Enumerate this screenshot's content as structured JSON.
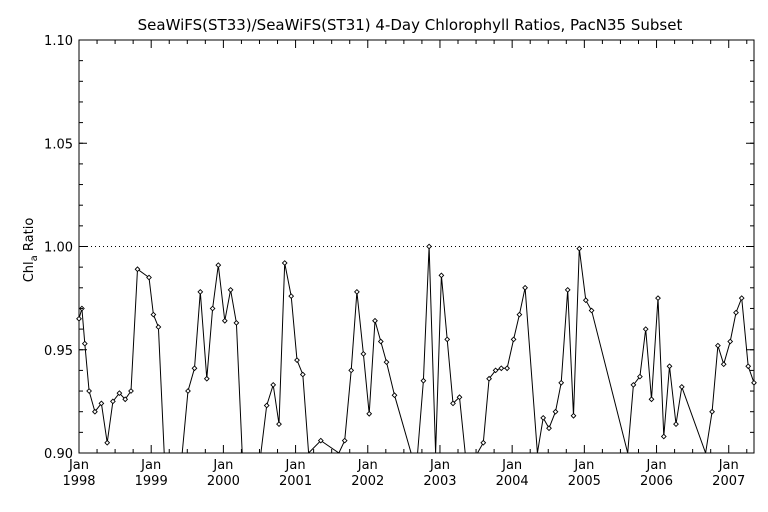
{
  "chart_data": {
    "type": "line",
    "title": "SeaWiFS(ST33)/SeaWiFS(ST31) 4-Day Chlorophyll Ratios, PacN35 Subset",
    "ylabel_main": "Chl",
    "ylabel_sub": "a",
    "ylabel_rest": " Ratio",
    "ylim": [
      0.9,
      1.1
    ],
    "xlim": [
      1998.0,
      2007.35
    ],
    "reference_line": 1.0,
    "grid": false,
    "yticks": [
      {
        "value": 0.9,
        "label": "0.90"
      },
      {
        "value": 0.95,
        "label": "0.95"
      },
      {
        "value": 1.0,
        "label": "1.00"
      },
      {
        "value": 1.05,
        "label": "1.05"
      },
      {
        "value": 1.1,
        "label": "1.10"
      }
    ],
    "xticks": [
      {
        "value": 1998,
        "month": "Jan",
        "year": "1998"
      },
      {
        "value": 1999,
        "month": "Jan",
        "year": "1999"
      },
      {
        "value": 2000,
        "month": "Jan",
        "year": "2000"
      },
      {
        "value": 2001,
        "month": "Jan",
        "year": "2001"
      },
      {
        "value": 2002,
        "month": "Jan",
        "year": "2002"
      },
      {
        "value": 2003,
        "month": "Jan",
        "year": "2003"
      },
      {
        "value": 2004,
        "month": "Jan",
        "year": "2004"
      },
      {
        "value": 2005,
        "month": "Jan",
        "year": "2005"
      },
      {
        "value": 2006,
        "month": "Jan",
        "year": "2006"
      },
      {
        "value": 2007,
        "month": "Jan",
        "year": "2007"
      }
    ],
    "series": [
      {
        "color": "#000000",
        "x": [
          1998.0,
          1998.04,
          1998.08,
          1998.14,
          1998.22,
          1998.31,
          1998.39,
          1998.47,
          1998.56,
          1998.64,
          1998.72,
          1998.81,
          1998.97,
          1999.03,
          1999.1,
          1999.18,
          1999.43,
          1999.51,
          1999.6,
          1999.68,
          1999.77,
          1999.85,
          1999.93,
          2000.02,
          2000.1,
          2000.18,
          2000.26,
          2000.52,
          2000.6,
          2000.69,
          2000.77,
          2000.85,
          2000.94,
          2001.02,
          2001.1,
          2001.18,
          2001.35,
          2001.6,
          2001.68,
          2001.77,
          2001.85,
          2001.94,
          2002.02,
          2002.1,
          2002.18,
          2002.26,
          2002.37,
          2002.6,
          2002.69,
          2002.77,
          2002.85,
          2002.94,
          2003.02,
          2003.1,
          2003.18,
          2003.27,
          2003.35,
          2003.52,
          2003.6,
          2003.68,
          2003.77,
          2003.85,
          2003.93,
          2004.02,
          2004.1,
          2004.18,
          2004.35,
          2004.43,
          2004.51,
          2004.6,
          2004.68,
          2004.77,
          2004.85,
          2004.93,
          2005.02,
          2005.1,
          2005.6,
          2005.68,
          2005.77,
          2005.85,
          2005.93,
          2006.02,
          2006.1,
          2006.18,
          2006.27,
          2006.35,
          2006.68,
          2006.77,
          2006.85,
          2006.93,
          2007.02,
          2007.1,
          2007.18,
          2007.27,
          2007.35
        ],
        "y": [
          0.965,
          0.97,
          0.953,
          0.93,
          0.92,
          0.924,
          0.905,
          0.925,
          0.929,
          0.926,
          0.93,
          0.989,
          0.985,
          0.967,
          0.961,
          0.9,
          0.9,
          0.93,
          0.941,
          0.978,
          0.936,
          0.97,
          0.991,
          0.964,
          0.979,
          0.963,
          0.9,
          0.9,
          0.923,
          0.933,
          0.914,
          0.992,
          0.976,
          0.945,
          0.938,
          0.9,
          0.906,
          0.9,
          0.906,
          0.94,
          0.978,
          0.948,
          0.919,
          0.964,
          0.954,
          0.944,
          0.928,
          0.9,
          0.9,
          0.935,
          1.0,
          0.9,
          0.986,
          0.955,
          0.924,
          0.927,
          0.9,
          0.9,
          0.905,
          0.936,
          0.94,
          0.941,
          0.941,
          0.955,
          0.967,
          0.98,
          0.9,
          0.917,
          0.912,
          0.92,
          0.934,
          0.979,
          0.918,
          0.999,
          0.974,
          0.969,
          0.9,
          0.933,
          0.937,
          0.96,
          0.926,
          0.975,
          0.908,
          0.942,
          0.914,
          0.932,
          0.9,
          0.92,
          0.952,
          0.943,
          0.954,
          0.968,
          0.975,
          0.942,
          0.934
        ]
      }
    ]
  }
}
